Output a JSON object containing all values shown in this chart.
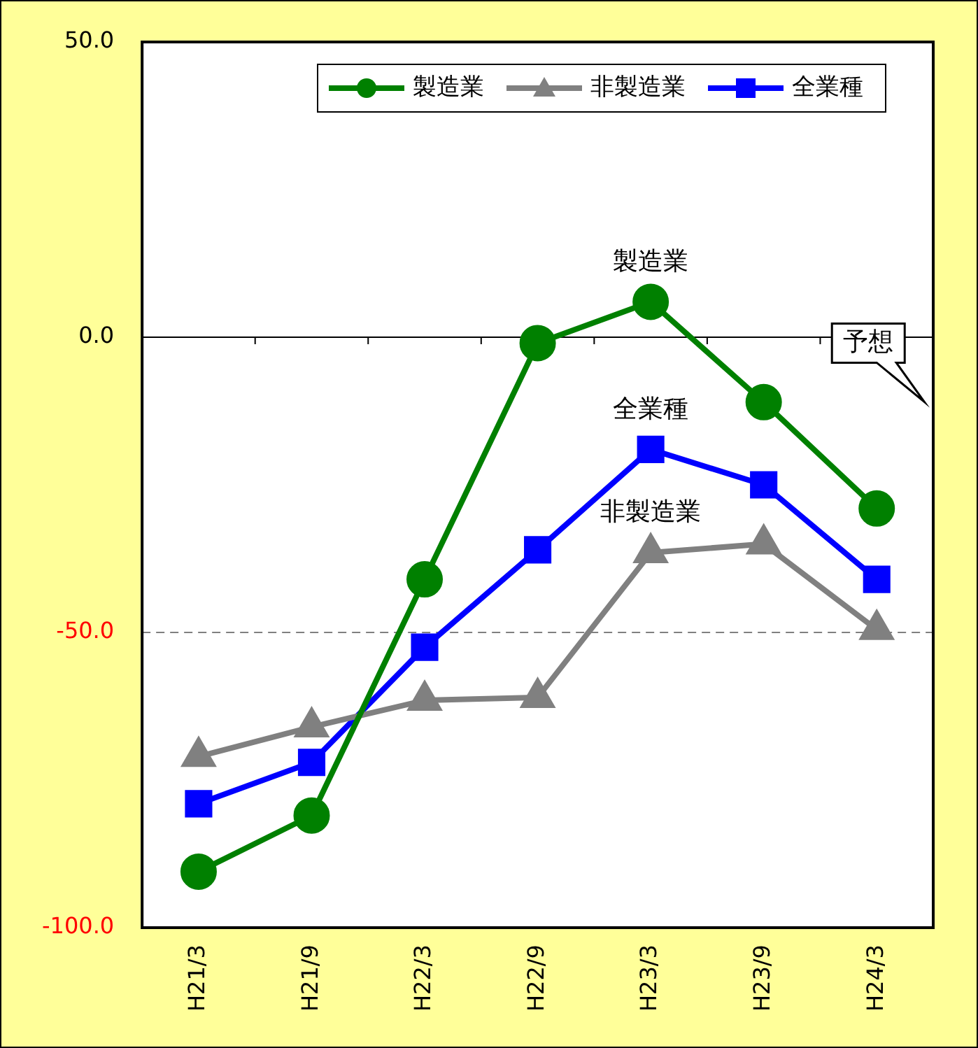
{
  "chart_data": {
    "type": "line",
    "categories": [
      "H21/3",
      "H21/9",
      "H22/3",
      "H22/9",
      "H23/3",
      "H23/9",
      "H24/3"
    ],
    "series": [
      {
        "name": "製造業",
        "color": "#008000",
        "marker": "circle",
        "values": [
          -90.5,
          -81,
          -41,
          -1,
          6,
          -11,
          -29
        ]
      },
      {
        "name": "非製造業",
        "color": "#808080",
        "marker": "triangle",
        "values": [
          -71,
          -66,
          -61.5,
          -61,
          -36.5,
          -35,
          -49.5
        ]
      },
      {
        "name": "全業種",
        "color": "#0000ff",
        "marker": "square",
        "values": [
          -79,
          -72,
          -52.5,
          -36,
          -19,
          -25,
          -41
        ]
      }
    ],
    "ylim": [
      -100,
      50
    ],
    "yticks": [
      {
        "value": -100,
        "label": "-100.0"
      },
      {
        "value": -50,
        "label": "-50.0"
      },
      {
        "value": 0,
        "label": "0.0"
      },
      {
        "value": 50,
        "label": "50.0"
      }
    ],
    "grid": false,
    "legend": "top right",
    "line_style": "solid",
    "ref_lines": [
      {
        "axis": "y",
        "value": 0,
        "color": "#000000",
        "line_style": "solid"
      },
      {
        "axis": "y",
        "value": -50,
        "color": "#808080",
        "line_style": "dashed"
      }
    ],
    "annotations": [
      "製造業",
      "非製造業",
      "全業種",
      "予想"
    ]
  }
}
